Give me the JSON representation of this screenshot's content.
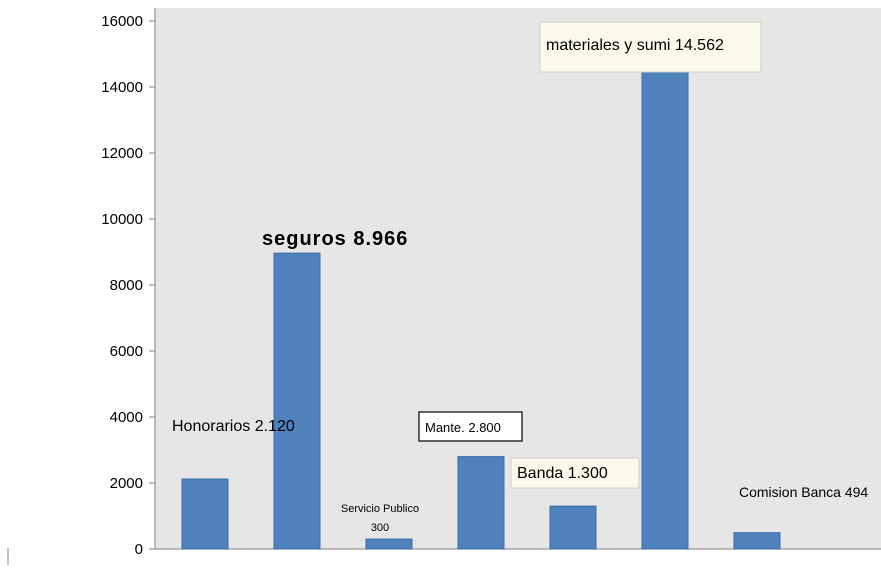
{
  "chart_data": {
    "type": "bar",
    "categories": [
      "Honorarios",
      "seguros",
      "Servicio Publico",
      "Mante.",
      "Banda",
      "materiales y sumi",
      "Comision Banca"
    ],
    "values": [
      2120,
      8966,
      300,
      2800,
      1300,
      14562,
      494
    ],
    "data_labels": [
      "Honorarios  2.120",
      "seguros 8.966",
      "Servicio Publico 300",
      "Mante. 2.800",
      "Banda  1.300",
      "materiales y sumi  14.562",
      "Comision Banca 494"
    ],
    "title": "",
    "xlabel": "",
    "ylabel": "",
    "ylim": [
      0,
      16000
    ],
    "yticks": [
      0,
      2000,
      4000,
      6000,
      8000,
      10000,
      12000,
      14000,
      16000
    ],
    "grid": false,
    "legend": "none",
    "colors": {
      "bar": "#4f81bd",
      "bar_edge": "#3a6ea5",
      "plot_bg": "#e6e6e6",
      "label_box": "#fbf9e9"
    }
  }
}
